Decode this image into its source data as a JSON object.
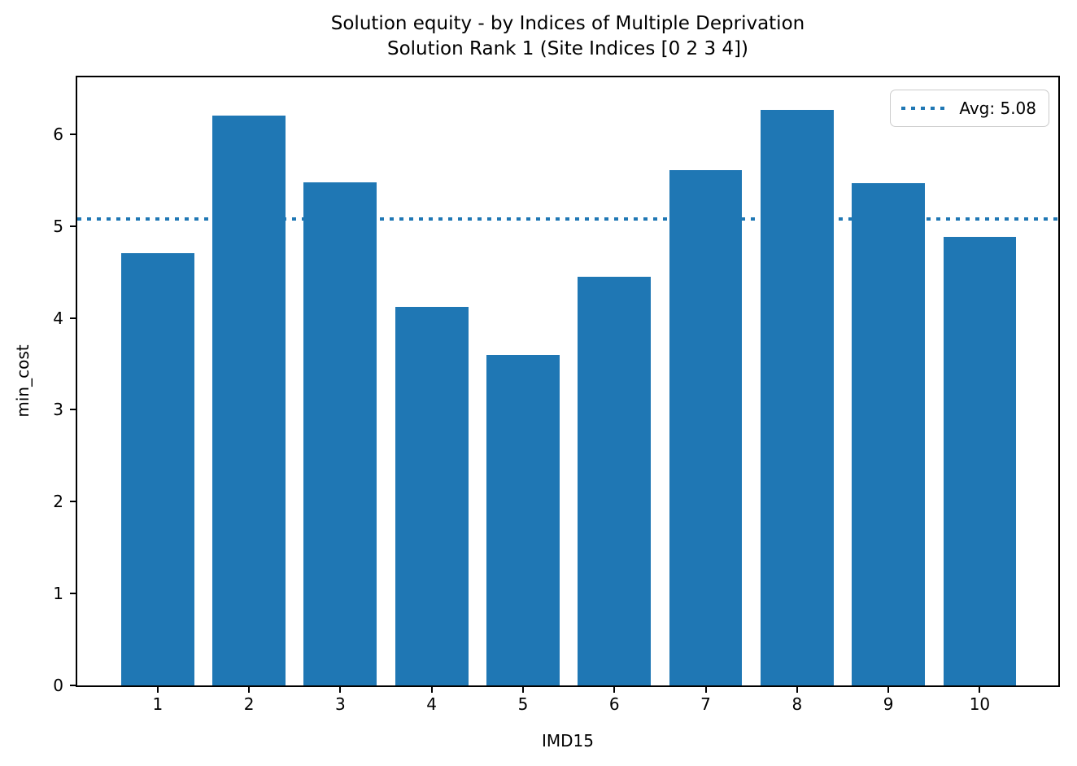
{
  "chart_data": {
    "type": "bar",
    "title_line1": "Solution equity - by Indices of Multiple Deprivation",
    "title_line2": "Solution Rank 1 (Site Indices [0 2 3 4])",
    "xlabel": "IMD15",
    "ylabel": "min_cost",
    "categories": [
      "1",
      "2",
      "3",
      "4",
      "5",
      "6",
      "7",
      "8",
      "9",
      "10"
    ],
    "values": [
      4.71,
      6.2,
      5.48,
      4.12,
      3.6,
      4.45,
      5.61,
      6.27,
      5.47,
      4.88
    ],
    "average": 5.08,
    "legend_label": "Avg: 5.08",
    "legend_position": "upper right",
    "yticks": [
      0,
      1,
      2,
      3,
      4,
      5,
      6
    ],
    "ylim": [
      0,
      6.62
    ],
    "xlim": [
      0.12,
      10.86
    ],
    "bar_width_data_units": 0.8,
    "bar_color": "#1f77b4",
    "avg_line_color": "#1f77b4",
    "avg_line_style": "dotted",
    "grid": false,
    "plot_background": "#ffffff"
  }
}
